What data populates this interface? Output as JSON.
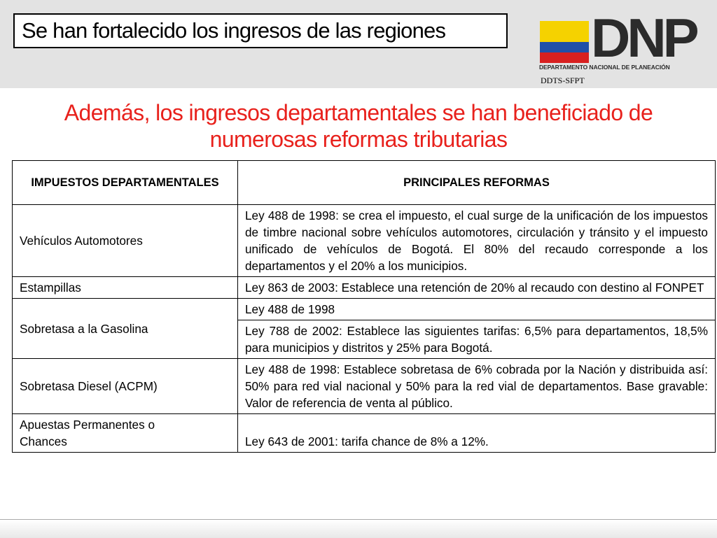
{
  "header": {
    "title": "Se han fortalecido los ingresos de las regiones",
    "logo": {
      "word": "DNP",
      "subtitle": "DEPARTAMENTO NACIONAL DE PLANEACIÓN",
      "flag_colors": [
        "#f5d200",
        "#2050a8",
        "#d82020"
      ]
    },
    "unit": "DDTS-SFPT"
  },
  "subtitle": "Además, los ingresos departamentales se han beneficiado de numerosas reformas tributarias",
  "table": {
    "headers": [
      "IMPUESTOS DEPARTAMENTALES",
      "PRINCIPALES REFORMAS"
    ],
    "rows": [
      {
        "tax": "Vehículos Automotores",
        "reforms": [
          "Ley 488 de 1998: se crea el impuesto, el cual surge de la unificación de los impuestos de timbre nacional sobre vehículos automotores, circulación y tránsito y el impuesto unificado de vehículos de Bogotá. El 80% del recaudo corresponde a los departamentos y el 20% a los municipios."
        ]
      },
      {
        "tax": "Estampillas",
        "reforms": [
          "Ley 863 de 2003: Establece una retención de 20% al recaudo con destino al FONPET"
        ]
      },
      {
        "tax": "Sobretasa a la Gasolina",
        "reforms": [
          "Ley 488 de 1998",
          "Ley 788 de 2002: Establece las siguientes tarifas: 6,5% para departamentos, 18,5% para municipios y distritos y 25% para Bogotá."
        ]
      },
      {
        "tax": "Sobretasa Diesel (ACPM)",
        "reforms": [
          "Ley 488 de 1998: Establece sobretasa de 6% cobrada por la Nación y distribuida así: 50% para red vial nacional y 50% para la red vial de departamentos. Base gravable: Valor de referencia de venta al público."
        ]
      },
      {
        "tax": "Apuestas Permanentes o Chances",
        "reforms": [
          "Ley 643 de 2001: tarifa chance de 8% a 12%."
        ]
      }
    ]
  },
  "colors": {
    "accent_red": "#e8211c",
    "header_band": "#e3e3e3"
  }
}
